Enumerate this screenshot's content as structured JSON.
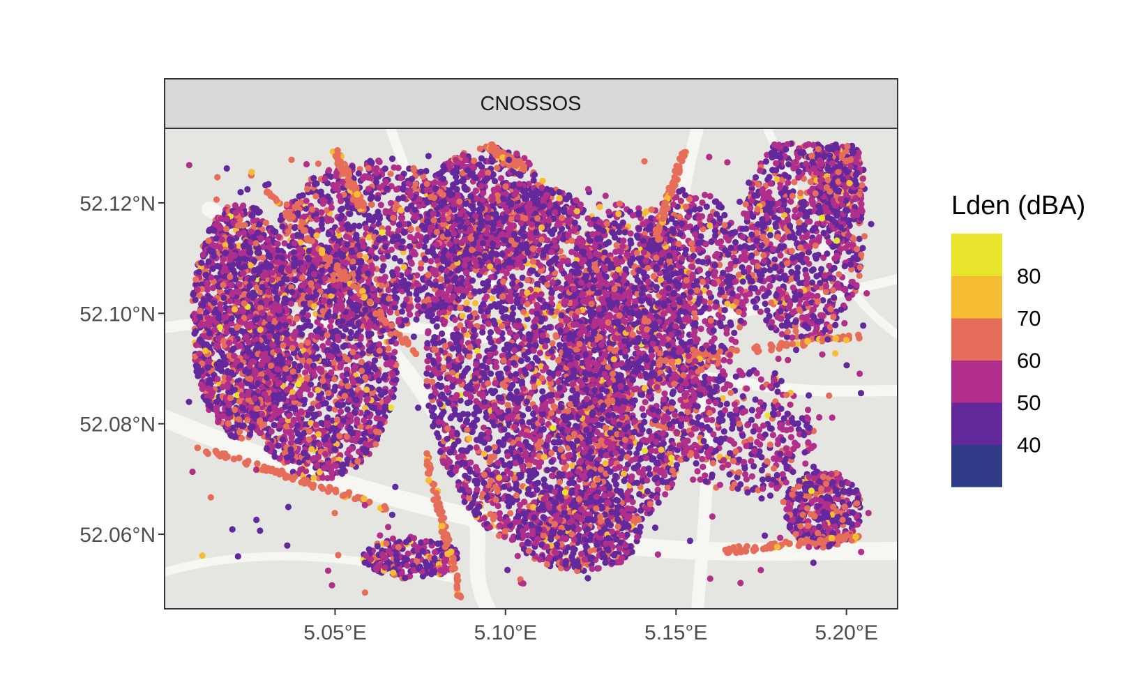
{
  "chart_data": {
    "type": "scatter",
    "panel_title": "CNOSSOS",
    "x_axis": {
      "ticks": [
        {
          "value": 5.05,
          "label": "5.05°E"
        },
        {
          "value": 5.1,
          "label": "5.10°E"
        },
        {
          "value": 5.15,
          "label": "5.15°E"
        },
        {
          "value": 5.2,
          "label": "5.20°E"
        }
      ],
      "range": [
        5.0,
        5.215
      ]
    },
    "y_axis": {
      "ticks": [
        {
          "value": 52.06,
          "label": "52.06°N"
        },
        {
          "value": 52.08,
          "label": "52.08°N"
        },
        {
          "value": 52.1,
          "label": "52.10°N"
        },
        {
          "value": 52.12,
          "label": "52.12°N"
        }
      ],
      "range": [
        52.0465,
        52.1335
      ]
    },
    "legend": {
      "title": "Lden (dBA)",
      "placement": "right",
      "bins": [
        {
          "color": "#2f3b86"
        },
        {
          "color": "#62289c",
          "label": "40"
        },
        {
          "color": "#b12f8b",
          "label": "50"
        },
        {
          "color": "#e66d59",
          "label": "60"
        },
        {
          "color": "#f6bd34",
          "label": "70"
        },
        {
          "color": "#e7e42b",
          "label": "80"
        }
      ]
    },
    "panel_background": "#e5e6e1",
    "strip_background": "#d9d9d9",
    "basemap": "grey street basemap",
    "points_note": "thousands of noise receiver points over Utrecht"
  }
}
